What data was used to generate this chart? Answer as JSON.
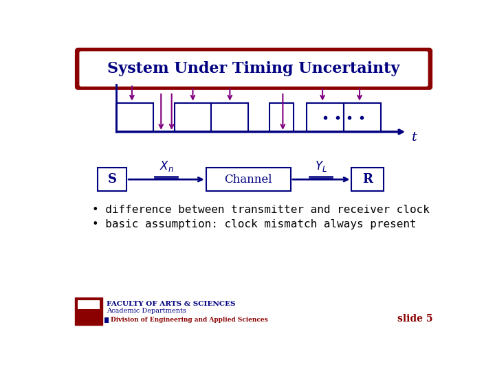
{
  "title": "System Under Timing Uncertainty",
  "title_color": "#000080",
  "title_bg": "#8B0000",
  "slide_bg": "#FFFFFF",
  "border_color": "#000080",
  "bullet1": "difference between transmitter and receiver clock",
  "bullet2": "basic assumption: clock mismatch always present",
  "slide_label": "slide 5",
  "footer_line1": "FACULTY OF ARTS & SCIENCES",
  "footer_line2": "Academic Departments",
  "footer_bottom": "Division of Engineering and Applied Sciences",
  "arrow_color": "#800080",
  "box_color": "#000080",
  "signal_color": "#000080",
  "t_label": "t",
  "pulse_color": "#000080",
  "dots_color": "#000080"
}
